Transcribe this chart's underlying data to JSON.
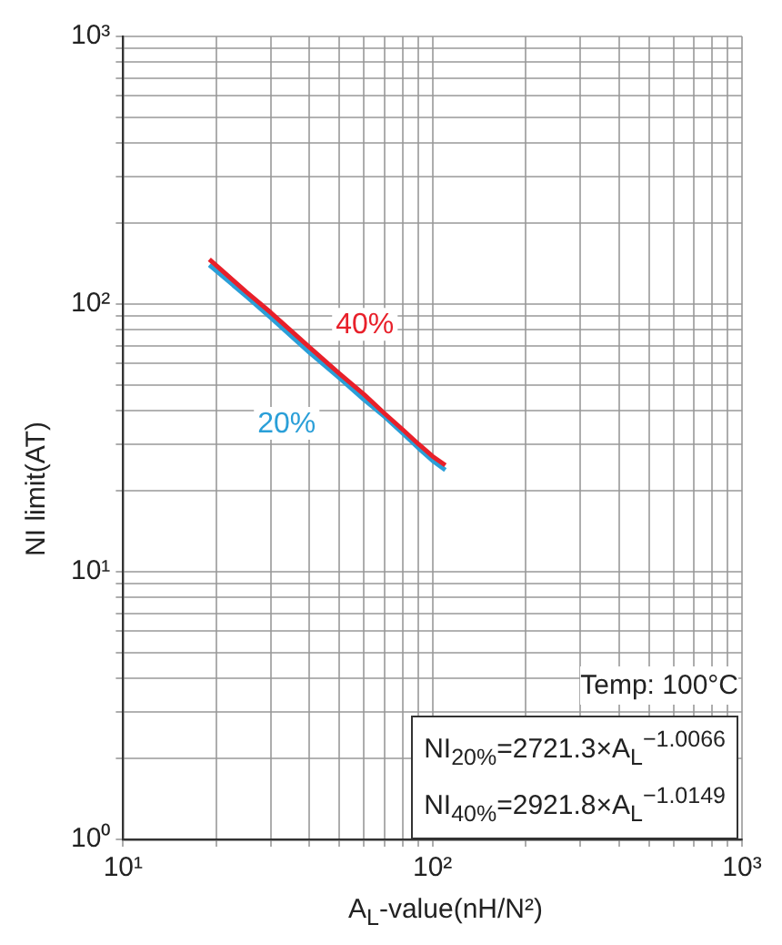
{
  "chart_data": {
    "type": "line",
    "xlabel": "A$_{L}$-value(nH/N²)",
    "ylabel": "NI limit(AT)",
    "x": [
      19,
      25,
      30,
      40,
      50,
      60,
      70,
      80,
      90,
      100,
      110
    ],
    "series": [
      {
        "name": "40%",
        "color": "#e8202a",
        "values": [
          147,
          111,
          93,
          69,
          55,
          46,
          39,
          34,
          30,
          27,
          25
        ]
      },
      {
        "name": "20%",
        "color": "#2a9fd8",
        "values": [
          140,
          107,
          89,
          66,
          53,
          44,
          38,
          33,
          29,
          26,
          24
        ]
      }
    ],
    "log": "xy",
    "xlim": [
      10,
      1000
    ],
    "ylim": [
      1,
      1000
    ],
    "xticks": [
      {
        "value": 10,
        "label": "10¹"
      },
      {
        "value": 20,
        "label": null
      },
      {
        "value": 30,
        "label": null
      },
      {
        "value": 40,
        "label": null
      },
      {
        "value": 50,
        "label": null
      },
      {
        "value": 60,
        "label": null
      },
      {
        "value": 70,
        "label": null
      },
      {
        "value": 80,
        "label": null
      },
      {
        "value": 90,
        "label": null
      },
      {
        "value": 100,
        "label": "10²"
      },
      {
        "value": 200,
        "label": null
      },
      {
        "value": 300,
        "label": null
      },
      {
        "value": 400,
        "label": null
      },
      {
        "value": 500,
        "label": null
      },
      {
        "value": 600,
        "label": null
      },
      {
        "value": 700,
        "label": null
      },
      {
        "value": 800,
        "label": null
      },
      {
        "value": 900,
        "label": null
      },
      {
        "value": 1000,
        "label": "10³"
      }
    ],
    "yticks": [
      {
        "value": 1,
        "label": "10⁰"
      },
      {
        "value": 2,
        "label": null
      },
      {
        "value": 3,
        "label": null
      },
      {
        "value": 4,
        "label": null
      },
      {
        "value": 5,
        "label": null
      },
      {
        "value": 6,
        "label": null
      },
      {
        "value": 7,
        "label": null
      },
      {
        "value": 8,
        "label": null
      },
      {
        "value": 9,
        "label": null
      },
      {
        "value": 10,
        "label": "10¹"
      },
      {
        "value": 20,
        "label": null
      },
      {
        "value": 30,
        "label": null
      },
      {
        "value": 40,
        "label": null
      },
      {
        "value": 50,
        "label": null
      },
      {
        "value": 60,
        "label": null
      },
      {
        "value": 70,
        "label": null
      },
      {
        "value": 80,
        "label": null
      },
      {
        "value": 90,
        "label": null
      },
      {
        "value": 100,
        "label": "10²"
      },
      {
        "value": 200,
        "label": null
      },
      {
        "value": 300,
        "label": null
      },
      {
        "value": 400,
        "label": null
      },
      {
        "value": 500,
        "label": null
      },
      {
        "value": 600,
        "label": null
      },
      {
        "value": 700,
        "label": null
      },
      {
        "value": 800,
        "label": null
      },
      {
        "value": 900,
        "label": null
      },
      {
        "value": 1000,
        "label": "10³"
      }
    ],
    "grid": true,
    "legend": false,
    "marker": "none",
    "line_style": "solid",
    "annotations": [
      "Temp: 100°C",
      "NI$_{20%}$=2721.3×A$_{L}$$^{−1.0066}$",
      "NI$_{40%}$=2921.8×A$_{L}$$^{−1.0149}$"
    ]
  }
}
